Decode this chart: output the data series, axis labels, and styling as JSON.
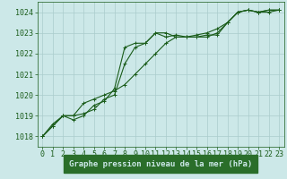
{
  "title": "Graphe pression niveau de la mer (hPa)",
  "bg_color": "#cce8e8",
  "plot_bg_color": "#cce8e8",
  "grid_color": "#aacccc",
  "line_color": "#1a5c1a",
  "xlabel_bg": "#2a6e2a",
  "xlabel_fg": "#cce8e8",
  "xlim": [
    -0.5,
    23.5
  ],
  "ylim": [
    1017.5,
    1024.5
  ],
  "yticks": [
    1018,
    1019,
    1020,
    1021,
    1022,
    1023,
    1024
  ],
  "xticks": [
    0,
    1,
    2,
    3,
    4,
    5,
    6,
    7,
    8,
    9,
    10,
    11,
    12,
    13,
    14,
    15,
    16,
    17,
    18,
    19,
    20,
    21,
    22,
    23
  ],
  "series": [
    [
      1018.0,
      1018.6,
      1019.0,
      1018.8,
      1019.0,
      1019.5,
      1019.7,
      1020.3,
      1022.3,
      1022.5,
      1022.5,
      1023.0,
      1023.0,
      1022.8,
      1022.8,
      1022.8,
      1022.9,
      1022.9,
      1023.5,
      1024.0,
      1024.1,
      1024.0,
      1024.1,
      1024.1
    ],
    [
      1018.0,
      1018.5,
      1019.0,
      1019.0,
      1019.6,
      1019.8,
      1020.0,
      1020.2,
      1020.5,
      1021.0,
      1021.5,
      1022.0,
      1022.5,
      1022.8,
      1022.8,
      1022.9,
      1023.0,
      1023.2,
      1023.5,
      1024.0,
      1024.1,
      1024.0,
      1024.1,
      1024.1
    ],
    [
      1018.0,
      1018.5,
      1019.0,
      1019.0,
      1019.1,
      1019.3,
      1019.8,
      1020.0,
      1021.5,
      1022.3,
      1022.5,
      1023.0,
      1022.8,
      1022.9,
      1022.8,
      1022.8,
      1022.8,
      1023.0,
      1023.5,
      1024.0,
      1024.1,
      1024.0,
      1024.0,
      1024.1
    ]
  ],
  "marker": "+",
  "markersize": 3,
  "linewidth": 0.8,
  "tick_fontsize": 6,
  "label_fontsize": 6.5
}
